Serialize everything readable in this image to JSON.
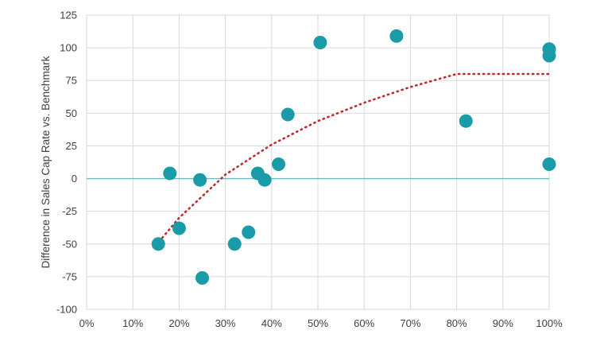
{
  "chart_data": {
    "type": "scatter",
    "title": "",
    "xlabel": "",
    "ylabel": "Difference in Sales Cap Rate vs. Benchmark",
    "xlim": [
      0,
      100
    ],
    "ylim": [
      -100,
      125
    ],
    "x_ticks": [
      "0%",
      "10%",
      "20%",
      "30%",
      "40%",
      "50%",
      "60%",
      "70%",
      "80%",
      "90%",
      "100%"
    ],
    "y_ticks": [
      "125",
      "100",
      "75",
      "50",
      "25",
      "0",
      "-25",
      "-50",
      "-75",
      "-100"
    ],
    "grid": true,
    "points": [
      {
        "x": 15.5,
        "y": -50
      },
      {
        "x": 18.0,
        "y": 4
      },
      {
        "x": 20.0,
        "y": -38
      },
      {
        "x": 24.5,
        "y": -1
      },
      {
        "x": 25.0,
        "y": -76
      },
      {
        "x": 32.0,
        "y": -50
      },
      {
        "x": 35.0,
        "y": -41
      },
      {
        "x": 37.0,
        "y": 4
      },
      {
        "x": 38.5,
        "y": -1
      },
      {
        "x": 41.5,
        "y": 11
      },
      {
        "x": 43.5,
        "y": 49
      },
      {
        "x": 50.5,
        "y": 104
      },
      {
        "x": 67.0,
        "y": 109
      },
      {
        "x": 82.0,
        "y": 44
      },
      {
        "x": 100.0,
        "y": 99
      },
      {
        "x": 100.0,
        "y": 94
      },
      {
        "x": 100.0,
        "y": 11
      }
    ],
    "trendline": {
      "type": "logarithmic",
      "x_range": [
        15,
        100
      ],
      "points": [
        [
          15,
          -51
        ],
        [
          20,
          -30
        ],
        [
          30,
          3
        ],
        [
          40,
          26
        ],
        [
          50,
          44
        ],
        [
          60,
          58
        ],
        [
          70,
          70
        ],
        [
          80,
          80
        ],
        [
          100,
          80
        ]
      ]
    },
    "colors": {
      "points": "#1a9ba8",
      "trendline": "#c0282d",
      "zero_line": "#6ab8c4",
      "grid": "#d9d9d9"
    }
  }
}
